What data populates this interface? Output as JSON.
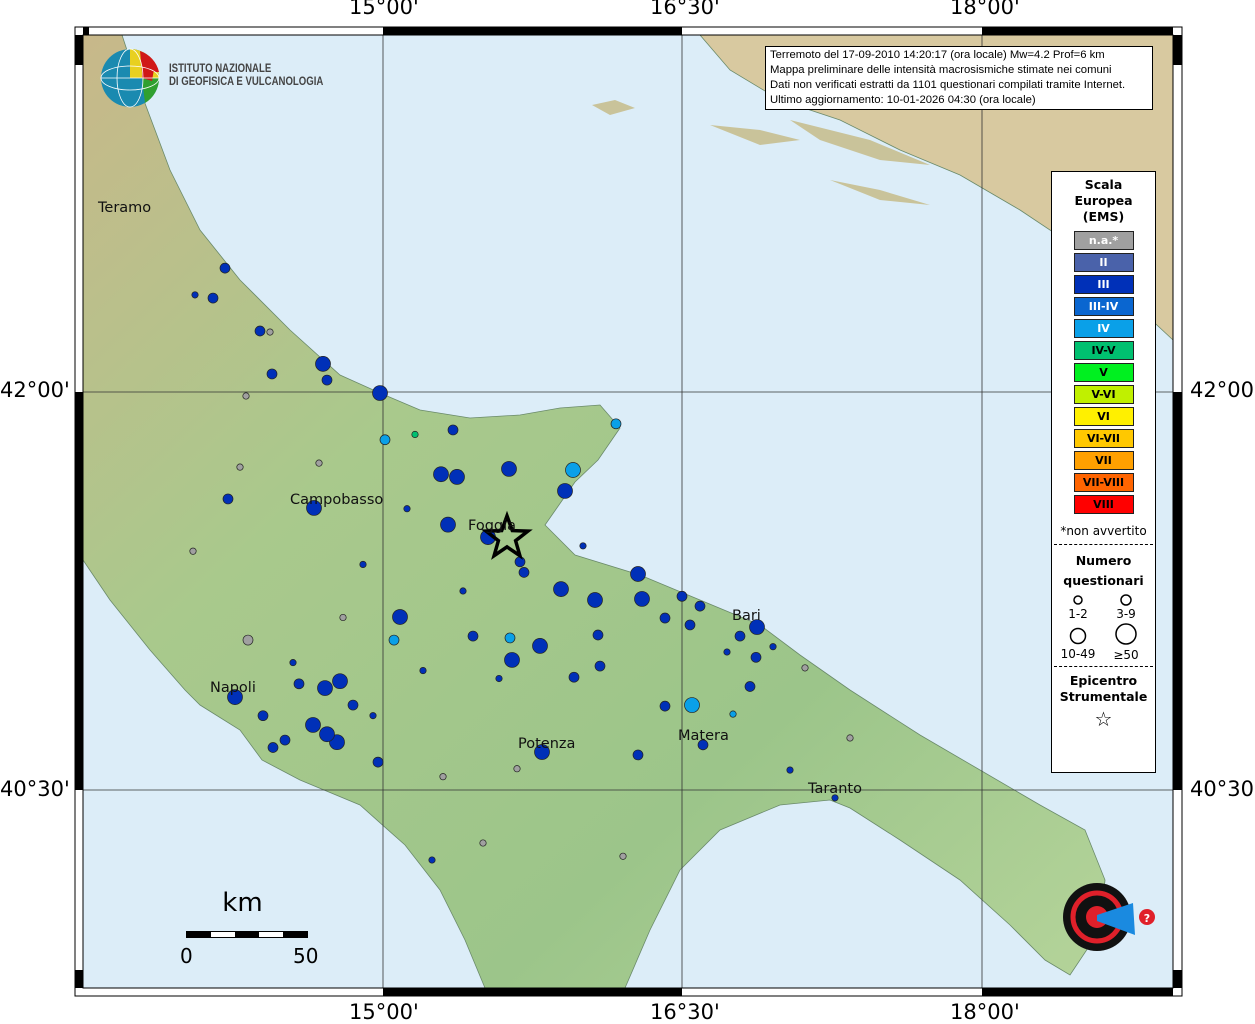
{
  "grid": {
    "lon_labels": [
      "15°00'",
      "16°30'",
      "18°00'"
    ],
    "lat_labels": [
      "42°00'",
      "40°30'"
    ]
  },
  "info": {
    "line1": "Terremoto del 17-09-2010 14:20:17 (ora locale) Mw=4.2 Prof=6 km",
    "line2": "Mappa preliminare delle intensità macrosismiche stimate nei comuni",
    "line3": "Dati non verificati estratti da 1101 questionari compilati tramite Internet.",
    "line4": "Ultimo aggiornamento: 10-01-2026 04:30 (ora locale)"
  },
  "logo": {
    "ingv_line1": "ISTITUTO NAZIONALE",
    "ingv_line2": "DI GEOFISICA E VULCANOLOGIA",
    "hst": "www.haisentitoilterremoto.it"
  },
  "legend": {
    "title1": "Scala",
    "title2": "Europea",
    "title3": "(EMS)",
    "classes": [
      {
        "label": "n.a.*",
        "color": "#a0a0a0",
        "text": "#fff"
      },
      {
        "label": "II",
        "color": "#4a62aa",
        "text": "#fff"
      },
      {
        "label": "III",
        "color": "#0030b8",
        "text": "#fff"
      },
      {
        "label": "III-IV",
        "color": "#0a66d0",
        "text": "#fff"
      },
      {
        "label": "IV",
        "color": "#0aa0e8",
        "text": "#fff"
      },
      {
        "label": "IV-V",
        "color": "#00c070",
        "text": "#000"
      },
      {
        "label": "V",
        "color": "#00f020",
        "text": "#000"
      },
      {
        "label": "V-VI",
        "color": "#c0f000",
        "text": "#000"
      },
      {
        "label": "VI",
        "color": "#fff000",
        "text": "#000"
      },
      {
        "label": "VI-VII",
        "color": "#ffc800",
        "text": "#000"
      },
      {
        "label": "VII",
        "color": "#ffa000",
        "text": "#000"
      },
      {
        "label": "VII-VIII",
        "color": "#ff6400",
        "text": "#000"
      },
      {
        "label": "VIII",
        "color": "#ff0000",
        "text": "#000"
      }
    ],
    "note": "*non avvertito",
    "count_title1": "Numero",
    "count_title2": "questionari",
    "sizes": [
      "1-2",
      "3-9",
      "10-49",
      "≥50"
    ],
    "epi_title1": "Epicentro",
    "epi_title2": "Strumentale"
  },
  "scalebar": {
    "unit": "km",
    "min": "0",
    "max": "50"
  },
  "cities": [
    {
      "name": "Teramo",
      "lon": 13.7,
      "lat": 42.66
    },
    {
      "name": "Campobasso",
      "lon": 14.66,
      "lat": 41.56
    },
    {
      "name": "Foggia",
      "lon": 15.55,
      "lat": 41.46
    },
    {
      "name": "Bari",
      "lon": 16.87,
      "lat": 41.12
    },
    {
      "name": "Napoli",
      "lon": 14.26,
      "lat": 40.85
    },
    {
      "name": "Potenza",
      "lon": 15.8,
      "lat": 40.64
    },
    {
      "name": "Matera",
      "lon": 16.6,
      "lat": 40.67
    },
    {
      "name": "Taranto",
      "lon": 17.25,
      "lat": 40.47
    }
  ],
  "epicenter": {
    "lon": 15.62,
    "lat": 41.45
  },
  "observations": [
    [
      14.21,
      42.467,
      "III",
      2
    ],
    [
      14.06,
      42.366,
      "III",
      1
    ],
    [
      14.15,
      42.354,
      "III",
      2
    ],
    [
      14.385,
      42.23,
      "III",
      2
    ],
    [
      14.445,
      42.068,
      "III",
      2
    ],
    [
      14.7,
      42.106,
      "III",
      3
    ],
    [
      14.72,
      42.045,
      "III",
      2
    ],
    [
      14.985,
      41.996,
      "III",
      3
    ],
    [
      15.01,
      41.82,
      "IV",
      2
    ],
    [
      15.29,
      41.69,
      "III",
      3
    ],
    [
      15.37,
      41.68,
      "III",
      3
    ],
    [
      15.63,
      41.71,
      "III",
      3
    ],
    [
      15.35,
      41.857,
      "III",
      2
    ],
    [
      15.95,
      41.706,
      "IV",
      3
    ],
    [
      15.91,
      41.627,
      "III",
      3
    ],
    [
      16.165,
      41.88,
      "IV",
      2
    ],
    [
      15.325,
      41.5,
      "III",
      3
    ],
    [
      15.525,
      41.453,
      "III",
      3
    ],
    [
      15.685,
      41.36,
      "III",
      2
    ],
    [
      15.705,
      41.32,
      "III",
      2
    ],
    [
      15.89,
      41.257,
      "III",
      3
    ],
    [
      16.06,
      41.216,
      "III",
      3
    ],
    [
      16.275,
      41.314,
      "III",
      3
    ],
    [
      16.295,
      41.22,
      "III",
      3
    ],
    [
      16.495,
      41.23,
      "III",
      2
    ],
    [
      16.585,
      41.193,
      "III",
      2
    ],
    [
      16.41,
      41.148,
      "III",
      2
    ],
    [
      16.535,
      41.122,
      "III",
      2
    ],
    [
      16.785,
      41.08,
      "III",
      2
    ],
    [
      16.87,
      41.114,
      "III",
      3
    ],
    [
      16.865,
      41.0,
      "III",
      2
    ],
    [
      15.085,
      41.152,
      "III",
      3
    ],
    [
      15.055,
      41.065,
      "IV",
      2
    ],
    [
      15.785,
      41.043,
      "III",
      3
    ],
    [
      15.645,
      40.99,
      "III",
      3
    ],
    [
      16.075,
      41.084,
      "III",
      2
    ],
    [
      16.085,
      40.967,
      "III",
      2
    ],
    [
      14.785,
      40.91,
      "III",
      3
    ],
    [
      14.71,
      40.884,
      "III",
      3
    ],
    [
      14.26,
      40.85,
      "III",
      3
    ],
    [
      14.77,
      40.68,
      "III",
      3
    ],
    [
      14.72,
      40.71,
      "III",
      3
    ],
    [
      14.65,
      40.745,
      "III",
      3
    ],
    [
      14.51,
      40.688,
      "III",
      2
    ],
    [
      15.795,
      40.643,
      "III",
      3
    ],
    [
      14.975,
      40.605,
      "III",
      2
    ],
    [
      16.545,
      40.82,
      "IV",
      3
    ],
    [
      16.41,
      40.816,
      "III",
      2
    ],
    [
      16.6,
      40.67,
      "III",
      2
    ],
    [
      16.275,
      40.632,
      "III",
      2
    ],
    [
      16.835,
      40.89,
      "III",
      2
    ],
    [
      14.655,
      41.563,
      "III",
      3
    ],
    [
      14.225,
      41.597,
      "III",
      2
    ],
    [
      15.16,
      41.84,
      "IV-V",
      1
    ],
    [
      14.325,
      41.065,
      "n.a.*",
      2
    ],
    [
      14.435,
      42.226,
      "n.a.*",
      1
    ],
    [
      17.11,
      40.96,
      "n.a.*",
      1
    ],
    [
      17.335,
      40.696,
      "n.a.*",
      1
    ],
    [
      15.245,
      40.236,
      "III",
      1
    ],
    [
      17.26,
      40.47,
      "III",
      1
    ],
    [
      15.955,
      40.925,
      "III",
      2
    ],
    [
      15.635,
      41.073,
      "IV",
      2
    ],
    [
      16.75,
      40.786,
      "IV",
      1
    ],
    [
      17.035,
      40.575,
      "III",
      1
    ],
    [
      14.285,
      41.717,
      "n.a.*",
      1
    ],
    [
      14.315,
      41.985,
      "n.a.*",
      1
    ],
    [
      14.68,
      41.732,
      "n.a.*",
      1
    ],
    [
      15.67,
      40.58,
      "n.a.*",
      1
    ],
    [
      14.55,
      40.98,
      "III",
      1
    ],
    [
      14.85,
      40.82,
      "III",
      2
    ],
    [
      15.2,
      40.95,
      "III",
      1
    ],
    [
      15.4,
      41.25,
      "III",
      1
    ],
    [
      16.0,
      41.42,
      "III",
      1
    ],
    [
      16.72,
      41.02,
      "III",
      1
    ],
    [
      16.95,
      41.04,
      "III",
      1
    ],
    [
      14.4,
      40.78,
      "III",
      2
    ],
    [
      14.9,
      41.35,
      "III",
      1
    ],
    [
      15.12,
      41.56,
      "III",
      1
    ],
    [
      14.95,
      40.78,
      "III",
      1
    ],
    [
      15.45,
      41.08,
      "III",
      2
    ],
    [
      15.58,
      40.92,
      "III",
      1
    ],
    [
      14.58,
      40.9,
      "III",
      2
    ],
    [
      14.45,
      40.66,
      "III",
      2
    ],
    [
      14.8,
      41.15,
      "n.a.*",
      1
    ],
    [
      15.5,
      40.3,
      "n.a.*",
      1
    ],
    [
      15.3,
      40.55,
      "n.a.*",
      1
    ],
    [
      16.2,
      40.25,
      "n.a.*",
      1
    ],
    [
      14.05,
      41.4,
      "n.a.*",
      1
    ]
  ]
}
